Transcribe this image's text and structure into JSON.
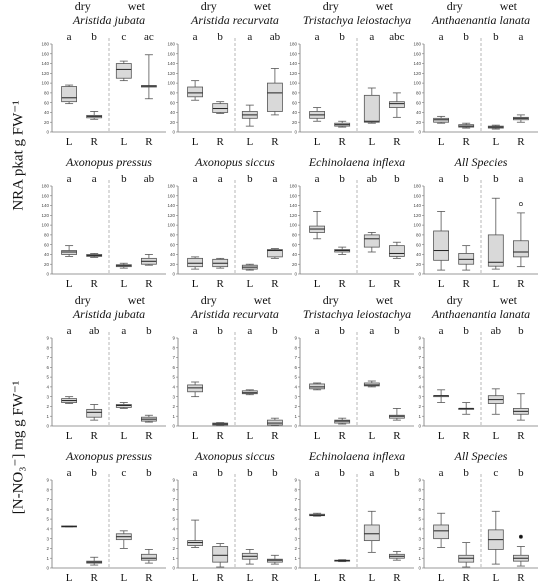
{
  "axis_titles": {
    "top": "NRA pkat g FW⁻¹",
    "bottom": "[N-NO₃⁻] mg g FW⁻¹"
  },
  "condition_labels": [
    "dry",
    "wet"
  ],
  "chart_data": [
    {
      "type": "box",
      "title": "Aristida jubata",
      "block": "NRA",
      "ylim": [
        0,
        180
      ],
      "yticks": [
        0,
        20,
        40,
        60,
        80,
        100,
        120,
        140,
        160,
        180
      ],
      "categories": [
        "L",
        "R",
        "L",
        "R"
      ],
      "conditions": [
        "dry",
        "dry",
        "wet",
        "wet"
      ],
      "letters": [
        "a",
        "b",
        "c",
        "ac"
      ],
      "boxes": [
        {
          "min": 58,
          "q1": 62,
          "median": 70,
          "q3": 93,
          "max": 96
        },
        {
          "min": 26,
          "q1": 29,
          "median": 32,
          "q3": 34,
          "max": 42
        },
        {
          "min": 105,
          "q1": 110,
          "median": 128,
          "q3": 140,
          "max": 145
        },
        {
          "min": 68,
          "q1": 92,
          "median": 94,
          "q3": 95,
          "max": 158
        }
      ]
    },
    {
      "type": "box",
      "title": "Aristida recurvata",
      "block": "NRA",
      "ylim": [
        0,
        180
      ],
      "yticks": [
        0,
        20,
        40,
        60,
        80,
        100,
        120,
        140,
        160,
        180
      ],
      "categories": [
        "L",
        "R",
        "L",
        "R"
      ],
      "conditions": [
        "dry",
        "dry",
        "wet",
        "wet"
      ],
      "letters": [
        "a",
        "b",
        "a",
        "ab"
      ],
      "boxes": [
        {
          "min": 65,
          "q1": 72,
          "median": 80,
          "q3": 92,
          "max": 105
        },
        {
          "min": 38,
          "q1": 40,
          "median": 48,
          "q3": 58,
          "max": 62
        },
        {
          "min": 12,
          "q1": 28,
          "median": 35,
          "q3": 42,
          "max": 55
        },
        {
          "min": 35,
          "q1": 42,
          "median": 80,
          "q3": 100,
          "max": 130
        }
      ]
    },
    {
      "type": "box",
      "title": "Tristachya leiostachya",
      "block": "NRA",
      "ylim": [
        0,
        180
      ],
      "yticks": [
        0,
        20,
        40,
        60,
        80,
        100,
        120,
        140,
        160,
        180
      ],
      "categories": [
        "L",
        "R",
        "L",
        "R"
      ],
      "conditions": [
        "dry",
        "dry",
        "wet",
        "wet"
      ],
      "letters": [
        "a",
        "b",
        "a",
        "abc"
      ],
      "boxes": [
        {
          "min": 22,
          "q1": 28,
          "median": 35,
          "q3": 42,
          "max": 50
        },
        {
          "min": 10,
          "q1": 12,
          "median": 15,
          "q3": 18,
          "max": 22
        },
        {
          "min": 18,
          "q1": 20,
          "median": 22,
          "q3": 75,
          "max": 90
        },
        {
          "min": 30,
          "q1": 50,
          "median": 58,
          "q3": 62,
          "max": 80
        }
      ]
    },
    {
      "type": "box",
      "title": "Anthaenantia lanata",
      "block": "NRA",
      "ylim": [
        0,
        180
      ],
      "yticks": [
        0,
        20,
        40,
        60,
        80,
        100,
        120,
        140,
        160,
        180
      ],
      "categories": [
        "L",
        "R",
        "L",
        "R"
      ],
      "conditions": [
        "dry",
        "dry",
        "wet",
        "wet"
      ],
      "letters": [
        "a",
        "b",
        "b",
        "a"
      ],
      "boxes": [
        {
          "min": 18,
          "q1": 20,
          "median": 25,
          "q3": 28,
          "max": 32
        },
        {
          "min": 8,
          "q1": 10,
          "median": 12,
          "q3": 15,
          "max": 18
        },
        {
          "min": 6,
          "q1": 8,
          "median": 10,
          "q3": 12,
          "max": 14
        },
        {
          "min": 20,
          "q1": 25,
          "median": 28,
          "q3": 30,
          "max": 35
        }
      ]
    },
    {
      "type": "box",
      "title": "Axonopus pressus",
      "block": "NRA",
      "ylim": [
        0,
        180
      ],
      "yticks": [
        0,
        20,
        40,
        60,
        80,
        100,
        120,
        140,
        160,
        180
      ],
      "categories": [
        "L",
        "R",
        "L",
        "R"
      ],
      "conditions": [
        "dry",
        "dry",
        "wet",
        "wet"
      ],
      "letters": [
        "a",
        "a",
        "b",
        "ab"
      ],
      "boxes": [
        {
          "min": 36,
          "q1": 40,
          "median": 45,
          "q3": 48,
          "max": 58
        },
        {
          "min": 34,
          "q1": 36,
          "median": 38,
          "q3": 40,
          "max": 42
        },
        {
          "min": 12,
          "q1": 15,
          "median": 17,
          "q3": 19,
          "max": 22
        },
        {
          "min": 18,
          "q1": 20,
          "median": 26,
          "q3": 32,
          "max": 40
        }
      ]
    },
    {
      "type": "box",
      "title": "Axonopus siccus",
      "block": "NRA",
      "ylim": [
        0,
        180
      ],
      "yticks": [
        0,
        20,
        40,
        60,
        80,
        100,
        120,
        140,
        160,
        180
      ],
      "categories": [
        "L",
        "R",
        "L",
        "R"
      ],
      "conditions": [
        "dry",
        "dry",
        "wet",
        "wet"
      ],
      "letters": [
        "a",
        "a",
        "b",
        "a"
      ],
      "boxes": [
        {
          "min": 10,
          "q1": 15,
          "median": 22,
          "q3": 32,
          "max": 35
        },
        {
          "min": 12,
          "q1": 15,
          "median": 22,
          "q3": 30,
          "max": 32
        },
        {
          "min": 8,
          "q1": 10,
          "median": 14,
          "q3": 18,
          "max": 20
        },
        {
          "min": 32,
          "q1": 35,
          "median": 48,
          "q3": 50,
          "max": 52
        }
      ]
    },
    {
      "type": "box",
      "title": "Echinolaena inflexa",
      "block": "NRA",
      "ylim": [
        0,
        180
      ],
      "yticks": [
        0,
        20,
        40,
        60,
        80,
        100,
        120,
        140,
        160,
        180
      ],
      "categories": [
        "L",
        "R",
        "L",
        "R"
      ],
      "conditions": [
        "dry",
        "dry",
        "wet",
        "wet"
      ],
      "letters": [
        "a",
        "b",
        "ab",
        "b"
      ],
      "boxes": [
        {
          "min": 72,
          "q1": 85,
          "median": 92,
          "q3": 98,
          "max": 128
        },
        {
          "min": 40,
          "q1": 45,
          "median": 48,
          "q3": 50,
          "max": 55
        },
        {
          "min": 45,
          "q1": 55,
          "median": 72,
          "q3": 80,
          "max": 85
        },
        {
          "min": 32,
          "q1": 36,
          "median": 42,
          "q3": 58,
          "max": 65
        }
      ]
    },
    {
      "type": "box",
      "title": "All Species",
      "block": "NRA",
      "ylim": [
        0,
        180
      ],
      "yticks": [
        0,
        20,
        40,
        60,
        80,
        100,
        120,
        140,
        160,
        180
      ],
      "categories": [
        "L",
        "R",
        "L",
        "R"
      ],
      "conditions": [
        "dry",
        "dry",
        "wet",
        "wet"
      ],
      "letters": [
        "a",
        "b",
        "b",
        "a"
      ],
      "boxes": [
        {
          "min": 8,
          "q1": 28,
          "median": 48,
          "q3": 88,
          "max": 128
        },
        {
          "min": 8,
          "q1": 20,
          "median": 30,
          "q3": 42,
          "max": 58
        },
        {
          "min": 10,
          "q1": 16,
          "median": 24,
          "q3": 80,
          "max": 155
        },
        {
          "min": 15,
          "q1": 35,
          "median": 45,
          "q3": 68,
          "max": 125
        }
      ],
      "outliers": [
        [],
        [],
        [],
        [
          143
        ]
      ]
    },
    {
      "type": "box",
      "title": "Aristida jubata",
      "block": "NO3",
      "ylim": [
        0,
        9
      ],
      "yticks": [
        0,
        1,
        2,
        3,
        4,
        5,
        6,
        7,
        8,
        9
      ],
      "categories": [
        "L",
        "R",
        "L",
        "R"
      ],
      "conditions": [
        "dry",
        "dry",
        "wet",
        "wet"
      ],
      "letters": [
        "a",
        "ab",
        "a",
        "b"
      ],
      "boxes": [
        {
          "min": 2.3,
          "q1": 2.4,
          "median": 2.6,
          "q3": 2.8,
          "max": 3.0
        },
        {
          "min": 0.6,
          "q1": 0.9,
          "median": 1.4,
          "q3": 1.7,
          "max": 2.2
        },
        {
          "min": 1.8,
          "q1": 1.9,
          "median": 2.1,
          "q3": 2.2,
          "max": 2.4
        },
        {
          "min": 0.4,
          "q1": 0.5,
          "median": 0.7,
          "q3": 0.9,
          "max": 1.1
        }
      ]
    },
    {
      "type": "box",
      "title": "Aristida recurvata",
      "block": "NO3",
      "ylim": [
        0,
        9
      ],
      "yticks": [
        0,
        1,
        2,
        3,
        4,
        5,
        6,
        7,
        8,
        9
      ],
      "categories": [
        "L",
        "R",
        "L",
        "R"
      ],
      "conditions": [
        "dry",
        "dry",
        "wet",
        "wet"
      ],
      "letters": [
        "a",
        "b",
        "a",
        "b"
      ],
      "boxes": [
        {
          "min": 3.0,
          "q1": 3.5,
          "median": 3.9,
          "q3": 4.2,
          "max": 4.5
        },
        {
          "min": 0.05,
          "q1": 0.1,
          "median": 0.2,
          "q3": 0.3,
          "max": 0.35
        },
        {
          "min": 3.2,
          "q1": 3.3,
          "median": 3.4,
          "q3": 3.6,
          "max": 3.7
        },
        {
          "min": 0.05,
          "q1": 0.1,
          "median": 0.3,
          "q3": 0.6,
          "max": 0.8
        }
      ]
    },
    {
      "type": "box",
      "title": "Tristachya leiostachya",
      "block": "NO3",
      "ylim": [
        0,
        9
      ],
      "yticks": [
        0,
        1,
        2,
        3,
        4,
        5,
        6,
        7,
        8,
        9
      ],
      "categories": [
        "L",
        "R",
        "L",
        "R"
      ],
      "conditions": [
        "dry",
        "dry",
        "wet",
        "wet"
      ],
      "letters": [
        "a",
        "b",
        "a",
        "b"
      ],
      "boxes": [
        {
          "min": 3.7,
          "q1": 3.8,
          "median": 4.0,
          "q3": 4.3,
          "max": 4.4
        },
        {
          "min": 0.2,
          "q1": 0.3,
          "median": 0.5,
          "q3": 0.6,
          "max": 0.8
        },
        {
          "min": 4.0,
          "q1": 4.1,
          "median": 4.2,
          "q3": 4.4,
          "max": 4.6
        },
        {
          "min": 0.6,
          "q1": 0.8,
          "median": 1.0,
          "q3": 1.1,
          "max": 1.8
        }
      ]
    },
    {
      "type": "box",
      "title": "Anthaenantia lanata",
      "block": "NO3",
      "ylim": [
        0,
        9
      ],
      "yticks": [
        0,
        1,
        2,
        3,
        4,
        5,
        6,
        7,
        8,
        9
      ],
      "categories": [
        "L",
        "R",
        "L",
        "R"
      ],
      "conditions": [
        "dry",
        "dry",
        "wet",
        "wet"
      ],
      "letters": [
        "a",
        "b",
        "ab",
        "b"
      ],
      "boxes": [
        {
          "min": 2.4,
          "q1": 3.0,
          "median": 3.1,
          "q3": 3.1,
          "max": 3.7
        },
        {
          "min": 1.2,
          "q1": 1.7,
          "median": 1.8,
          "q3": 1.8,
          "max": 2.4
        },
        {
          "min": 1.2,
          "q1": 2.3,
          "median": 2.7,
          "q3": 3.1,
          "max": 3.8
        },
        {
          "min": 0.6,
          "q1": 1.2,
          "median": 1.5,
          "q3": 1.8,
          "max": 3.3
        }
      ]
    },
    {
      "type": "box",
      "title": "Axonopus pressus",
      "block": "NO3",
      "ylim": [
        0,
        9
      ],
      "yticks": [
        0,
        1,
        2,
        3,
        4,
        5,
        6,
        7,
        8,
        9
      ],
      "categories": [
        "L",
        "R",
        "L",
        "R"
      ],
      "conditions": [
        "dry",
        "dry",
        "wet",
        "wet"
      ],
      "letters": [
        "a",
        "b",
        "c",
        "b"
      ],
      "boxes": [
        {
          "min": 4.2,
          "q1": 4.2,
          "median": 4.25,
          "q3": 4.3,
          "max": 4.3
        },
        {
          "min": 0.3,
          "q1": 0.5,
          "median": 0.6,
          "q3": 0.7,
          "max": 1.1
        },
        {
          "min": 2.0,
          "q1": 2.9,
          "median": 3.2,
          "q3": 3.5,
          "max": 3.8
        },
        {
          "min": 0.5,
          "q1": 0.8,
          "median": 1.0,
          "q3": 1.4,
          "max": 1.9
        }
      ]
    },
    {
      "type": "box",
      "title": "Axonopus siccus",
      "block": "NO3",
      "ylim": [
        0,
        9
      ],
      "yticks": [
        0,
        1,
        2,
        3,
        4,
        5,
        6,
        7,
        8,
        9
      ],
      "categories": [
        "L",
        "R",
        "L",
        "R"
      ],
      "conditions": [
        "dry",
        "dry",
        "wet",
        "wet"
      ],
      "letters": [
        "a",
        "b",
        "b",
        "b"
      ],
      "boxes": [
        {
          "min": 2.1,
          "q1": 2.3,
          "median": 2.6,
          "q3": 2.8,
          "max": 4.9
        },
        {
          "min": 0.1,
          "q1": 0.6,
          "median": 1.3,
          "q3": 2.2,
          "max": 2.5
        },
        {
          "min": 0.4,
          "q1": 0.9,
          "median": 1.2,
          "q3": 1.5,
          "max": 1.9
        },
        {
          "min": 0.4,
          "q1": 0.6,
          "median": 0.8,
          "q3": 0.9,
          "max": 1.3
        }
      ]
    },
    {
      "type": "box",
      "title": "Echinolaena inflexa",
      "block": "NO3",
      "ylim": [
        0,
        9
      ],
      "yticks": [
        0,
        1,
        2,
        3,
        4,
        5,
        6,
        7,
        8,
        9
      ],
      "categories": [
        "L",
        "R",
        "L",
        "R"
      ],
      "conditions": [
        "dry",
        "dry",
        "wet",
        "wet"
      ],
      "letters": [
        "a",
        "b",
        "a",
        "b"
      ],
      "boxes": [
        {
          "min": 5.3,
          "q1": 5.35,
          "median": 5.4,
          "q3": 5.5,
          "max": 5.6
        },
        {
          "min": 0.65,
          "q1": 0.7,
          "median": 0.75,
          "q3": 0.8,
          "max": 0.85
        },
        {
          "min": 1.6,
          "q1": 2.8,
          "median": 3.5,
          "q3": 4.4,
          "max": 5.8
        },
        {
          "min": 0.8,
          "q1": 1.0,
          "median": 1.2,
          "q3": 1.4,
          "max": 1.7
        }
      ]
    },
    {
      "type": "box",
      "title": "All Species",
      "block": "NO3",
      "ylim": [
        0,
        9
      ],
      "yticks": [
        0,
        1,
        2,
        3,
        4,
        5,
        6,
        7,
        8,
        9
      ],
      "categories": [
        "L",
        "R",
        "L",
        "R"
      ],
      "conditions": [
        "dry",
        "dry",
        "wet",
        "wet"
      ],
      "letters": [
        "a",
        "b",
        "c",
        "b"
      ],
      "boxes": [
        {
          "min": 2.1,
          "q1": 3.0,
          "median": 3.8,
          "q3": 4.4,
          "max": 5.6
        },
        {
          "min": 0.1,
          "q1": 0.6,
          "median": 1.0,
          "q3": 1.3,
          "max": 2.6
        },
        {
          "min": 0.4,
          "q1": 1.9,
          "median": 2.9,
          "q3": 3.9,
          "max": 5.8
        },
        {
          "min": 0.2,
          "q1": 0.7,
          "median": 1.0,
          "q3": 1.3,
          "max": 2.2
        }
      ],
      "outliers": [
        [],
        [],
        [],
        [
          3.2
        ]
      ]
    }
  ]
}
